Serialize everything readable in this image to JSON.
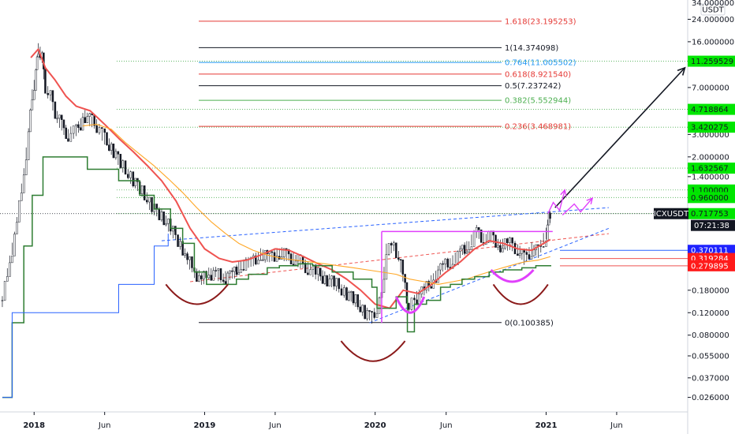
{
  "chart_data": {
    "type": "line",
    "symbol": "ICXUSDT",
    "currency": "USDT",
    "y_scale": "log",
    "ylim": [
      0.02,
      34
    ],
    "xlim": [
      "2017-10-20",
      "2021-10-31"
    ],
    "grid": false,
    "x_ticks": [
      {
        "label": "2018",
        "date": "2018-01-01"
      },
      {
        "label": "Jun",
        "date": "2018-06-01"
      },
      {
        "label": "2019",
        "date": "2019-01-01"
      },
      {
        "label": "Jun",
        "date": "2019-06-01"
      },
      {
        "label": "2020",
        "date": "2020-01-01"
      },
      {
        "label": "Jun",
        "date": "2020-06-01"
      },
      {
        "label": "2021",
        "date": "2021-01-01"
      },
      {
        "label": "Jun",
        "date": "2021-06-01"
      }
    ],
    "y_ticks": [
      "34.000000",
      "24.000000",
      "16.000000",
      "7.000000",
      "3.000000",
      "2.000000",
      "1.400000",
      "0.180000",
      "0.120000",
      "0.080000",
      "0.055000",
      "0.037000",
      "0.026000"
    ],
    "y_tick_values": [
      34,
      24,
      16,
      7,
      3,
      2,
      1.4,
      0.18,
      0.12,
      0.08,
      0.055,
      0.037,
      0.026
    ],
    "fib_levels": [
      {
        "label": "1.618(23.195253)",
        "value": 23.195253,
        "color": "#e53935"
      },
      {
        "label": "1(14.374098)",
        "value": 14.374098,
        "color": "#131722"
      },
      {
        "label": "0.764(11.005502)",
        "value": 11.005502,
        "color": "#2196f3"
      },
      {
        "label": "0.618(8.921540)",
        "value": 8.92154,
        "color": "#e53935"
      },
      {
        "label": "0.5(7.237242)",
        "value": 7.237242,
        "color": "#131722"
      },
      {
        "label": "0.382(5.552944)",
        "value": 5.552944,
        "color": "#4caf50"
      },
      {
        "label": "0.236(3.468981)",
        "value": 3.468981,
        "color": "#e53935"
      },
      {
        "label": "0(0.100385)",
        "value": 0.100385,
        "color": "#131722"
      }
    ],
    "price_tags": [
      {
        "label": "11.259529",
        "value": 11.259529,
        "bg": "#00e600",
        "fg": "#131722"
      },
      {
        "label": "4.718864",
        "value": 4.718864,
        "bg": "#00e600",
        "fg": "#131722"
      },
      {
        "label": "3.420275",
        "value": 3.420275,
        "bg": "#00e600",
        "fg": "#131722"
      },
      {
        "label": "1.632567",
        "value": 1.632567,
        "bg": "#00e600",
        "fg": "#131722"
      },
      {
        "label": "1.100000",
        "value": 1.1,
        "bg": "#00e600",
        "fg": "#131722"
      },
      {
        "label": "0.960000",
        "value": 0.96,
        "bg": "#00e600",
        "fg": "#131722"
      },
      {
        "label": "0.717753",
        "value": 0.717753,
        "bg": "#00e600",
        "fg": "#131722"
      },
      {
        "label": "07:21:38",
        "value": 0.58,
        "bg": "#131722",
        "fg": "#ffffff"
      },
      {
        "label": "0.370111",
        "value": 0.370111,
        "bg": "#1e22ff",
        "fg": "#ffffff"
      },
      {
        "label": "0.319284",
        "value": 0.319284,
        "bg": "#ff1a1a",
        "fg": "#ffffff"
      },
      {
        "label": "0.279895",
        "value": 0.279895,
        "bg": "#ff1a1a",
        "fg": "#ffffff"
      }
    ],
    "symbol_tag": {
      "label": "ICXUSDT",
      "value": 0.717753
    },
    "series": [
      {
        "kind": "candles",
        "color": "#131722",
        "x": [
          "2017-10-25",
          "2017-11-10",
          "2017-11-25",
          "2017-12-10",
          "2017-12-20",
          "2017-12-28",
          "2018-01-05",
          "2018-01-10",
          "2018-01-18",
          "2018-01-25",
          "2018-02-05",
          "2018-02-15",
          "2018-03-01",
          "2018-03-15",
          "2018-04-01",
          "2018-04-20",
          "2018-05-05",
          "2018-05-15",
          "2018-06-01",
          "2018-06-20",
          "2018-07-10",
          "2018-08-01",
          "2018-08-20",
          "2018-09-10",
          "2018-10-01",
          "2018-10-20",
          "2018-11-10",
          "2018-11-25",
          "2018-12-10",
          "2018-12-25",
          "2019-01-10",
          "2019-01-25",
          "2019-02-10",
          "2019-03-01",
          "2019-03-20",
          "2019-04-10",
          "2019-05-01",
          "2019-05-20",
          "2019-06-10",
          "2019-06-25",
          "2019-07-10",
          "2019-07-25",
          "2019-08-10",
          "2019-09-01",
          "2019-09-20",
          "2019-10-10",
          "2019-11-01",
          "2019-11-20",
          "2019-12-10",
          "2019-12-25",
          "2020-01-05",
          "2020-01-15",
          "2020-01-25",
          "2020-02-10",
          "2020-02-20",
          "2020-03-05",
          "2020-03-13",
          "2020-03-25",
          "2020-04-15",
          "2020-05-05",
          "2020-05-25",
          "2020-06-15",
          "2020-07-01",
          "2020-07-20",
          "2020-08-05",
          "2020-08-20",
          "2020-09-05",
          "2020-09-25",
          "2020-10-15",
          "2020-11-01",
          "2020-11-15",
          "2020-12-01",
          "2020-12-15",
          "2021-01-01",
          "2021-01-07",
          "2021-01-12"
        ],
        "y": [
          0.15,
          0.3,
          0.6,
          1.5,
          3,
          6,
          9,
          14,
          12,
          7,
          6,
          4.5,
          3.5,
          3,
          3.2,
          4.2,
          3.8,
          3.5,
          2.8,
          2.2,
          1.7,
          1.3,
          1.1,
          0.8,
          0.7,
          0.55,
          0.42,
          0.32,
          0.25,
          0.22,
          0.24,
          0.25,
          0.22,
          0.24,
          0.28,
          0.3,
          0.34,
          0.33,
          0.35,
          0.34,
          0.32,
          0.3,
          0.27,
          0.24,
          0.22,
          0.2,
          0.17,
          0.15,
          0.12,
          0.11,
          0.13,
          0.16,
          0.37,
          0.4,
          0.33,
          0.2,
          0.13,
          0.15,
          0.18,
          0.22,
          0.28,
          0.3,
          0.36,
          0.4,
          0.52,
          0.45,
          0.48,
          0.4,
          0.42,
          0.38,
          0.32,
          0.38,
          0.36,
          0.5,
          0.65,
          0.72
        ]
      },
      {
        "kind": "line",
        "color": "#ef5350",
        "x": [
          "2017-12-25",
          "2018-01-10",
          "2018-01-25",
          "2018-02-15",
          "2018-03-10",
          "2018-04-01",
          "2018-05-01",
          "2018-06-01",
          "2018-07-01",
          "2018-08-01",
          "2018-09-01",
          "2018-10-01",
          "2018-11-01",
          "2018-12-01",
          "2019-01-01",
          "2019-02-01",
          "2019-03-01",
          "2019-04-01",
          "2019-05-01",
          "2019-06-01",
          "2019-07-01",
          "2019-08-01",
          "2019-09-01",
          "2019-10-01",
          "2019-11-01",
          "2019-12-01",
          "2020-01-01",
          "2020-02-01",
          "2020-03-01",
          "2020-04-01",
          "2020-05-01",
          "2020-06-01",
          "2020-07-01",
          "2020-08-01",
          "2020-09-01",
          "2020-10-01",
          "2020-11-01",
          "2020-12-01",
          "2021-01-10"
        ],
        "y": [
          12,
          14,
          10,
          8,
          6,
          5,
          4.6,
          3.6,
          2.8,
          2.2,
          1.7,
          1.3,
          0.9,
          0.55,
          0.38,
          0.32,
          0.3,
          0.31,
          0.34,
          0.38,
          0.37,
          0.33,
          0.29,
          0.26,
          0.22,
          0.18,
          0.14,
          0.13,
          0.18,
          0.17,
          0.2,
          0.25,
          0.3,
          0.38,
          0.44,
          0.42,
          0.38,
          0.37,
          0.45
        ]
      },
      {
        "kind": "line",
        "color": "#ffa726",
        "x": [
          "2018-04-15",
          "2018-05-15",
          "2018-06-15",
          "2018-07-15",
          "2018-08-15",
          "2018-09-15",
          "2018-10-15",
          "2018-11-15",
          "2018-12-15",
          "2019-01-15",
          "2019-02-15",
          "2019-03-15",
          "2019-04-15",
          "2019-05-15",
          "2019-06-15",
          "2019-07-15",
          "2019-08-15",
          "2019-09-15",
          "2019-10-15",
          "2019-11-15",
          "2019-12-15",
          "2020-01-15",
          "2020-02-15",
          "2020-03-15",
          "2020-04-15",
          "2020-05-15",
          "2020-06-15",
          "2020-07-15",
          "2020-08-15",
          "2020-09-15",
          "2020-10-15",
          "2020-11-15",
          "2020-12-15",
          "2021-01-10"
        ],
        "y": [
          3.5,
          3.6,
          3.3,
          2.6,
          2.1,
          1.7,
          1.35,
          1.05,
          0.8,
          0.62,
          0.5,
          0.42,
          0.37,
          0.34,
          0.32,
          0.31,
          0.3,
          0.29,
          0.28,
          0.27,
          0.26,
          0.25,
          0.24,
          0.22,
          0.21,
          0.2,
          0.21,
          0.22,
          0.24,
          0.26,
          0.28,
          0.3,
          0.31,
          0.33
        ]
      },
      {
        "kind": "step",
        "color": "#2e7d32",
        "x": [
          "2017-10-25",
          "2017-11-15",
          "2017-12-10",
          "2017-12-28",
          "2018-01-20",
          "2018-04-10",
          "2018-04-25",
          "2018-06-01",
          "2018-07-01",
          "2018-08-15",
          "2018-09-15",
          "2018-10-20",
          "2018-11-15",
          "2018-12-10",
          "2019-01-05",
          "2019-02-10",
          "2019-03-10",
          "2019-04-05",
          "2019-05-15",
          "2019-06-10",
          "2019-07-20",
          "2019-08-20",
          "2019-10-01",
          "2019-11-15",
          "2019-12-25",
          "2020-01-05",
          "2020-01-25",
          "2020-02-15",
          "2020-03-10",
          "2020-03-25",
          "2020-04-20",
          "2020-05-20",
          "2020-06-10",
          "2020-07-05",
          "2020-08-01",
          "2020-09-01",
          "2020-10-01",
          "2020-11-10",
          "2020-12-10",
          "2021-01-12"
        ],
        "y": [
          0.026,
          0.1,
          0.4,
          1.0,
          2.0,
          2.0,
          1.6,
          1.6,
          1.3,
          1.0,
          0.78,
          0.55,
          0.42,
          0.25,
          0.2,
          0.2,
          0.22,
          0.24,
          0.27,
          0.28,
          0.29,
          0.28,
          0.25,
          0.22,
          0.19,
          0.13,
          0.13,
          0.16,
          0.085,
          0.14,
          0.15,
          0.19,
          0.2,
          0.22,
          0.23,
          0.25,
          0.26,
          0.27,
          0.28,
          0.28
        ]
      },
      {
        "kind": "step",
        "color": "#2962ff",
        "x": [
          "2017-10-25",
          "2017-11-15",
          "2018-06-15",
          "2018-07-01",
          "2018-09-15",
          "2018-10-15"
        ],
        "y": [
          0.026,
          0.12,
          0.12,
          0.2,
          0.4,
          0.5
        ]
      }
    ],
    "annotations": {
      "horizontal_line": {
        "value": 0.52,
        "x_from": "2020-01-15",
        "x_to": "2021-01-15",
        "color": "#e040fb"
      },
      "rising_lines": [
        {
          "x": [
            "2018-10-01",
            "2021-05-15"
          ],
          "y": [
            0.44,
            0.8
          ],
          "color": "#2962ff",
          "dash": true
        },
        {
          "x": [
            "2018-12-01",
            "2021-05-15"
          ],
          "y": [
            0.21,
            0.5
          ],
          "color": "#ef5350",
          "dash": true
        },
        {
          "x": [
            "2019-12-20",
            "2021-05-15"
          ],
          "y": [
            0.1,
            0.55
          ],
          "color": "#2962ff",
          "dash": true
        }
      ],
      "target_arrow": {
        "x": [
          "2021-01-20",
          "2021-10-25"
        ],
        "y": [
          0.8,
          10.0
        ],
        "color": "#131722"
      },
      "projection_arrows": [
        {
          "x": [
            "2021-01-05",
            "2021-02-10"
          ],
          "y": [
            0.72,
            1.1
          ],
          "color": "#e040fb"
        },
        {
          "x": [
            "2021-02-05",
            "2021-04-10"
          ],
          "y": [
            0.7,
            0.95
          ],
          "color": "#e040fb"
        }
      ],
      "arcs": [
        {
          "x_from": "2018-10-10",
          "x_to": "2019-02-20",
          "y": 0.2,
          "depth": 0.14,
          "color": "#8b1a1a"
        },
        {
          "x_from": "2019-10-20",
          "x_to": "2020-03-05",
          "y": 0.072,
          "depth": 0.05,
          "color": "#8b1a1a"
        },
        {
          "x_from": "2020-09-10",
          "x_to": "2021-01-05",
          "y": 0.2,
          "depth": 0.14,
          "color": "#8b1a1a"
        },
        {
          "x_from": "2020-02-15",
          "x_to": "2020-04-15",
          "y": 0.16,
          "depth": 0.12,
          "color": "#e040fb"
        },
        {
          "x_from": "2020-09-05",
          "x_to": "2020-12-05",
          "y": 0.26,
          "depth": 0.21,
          "color": "#e040fb"
        }
      ]
    }
  }
}
